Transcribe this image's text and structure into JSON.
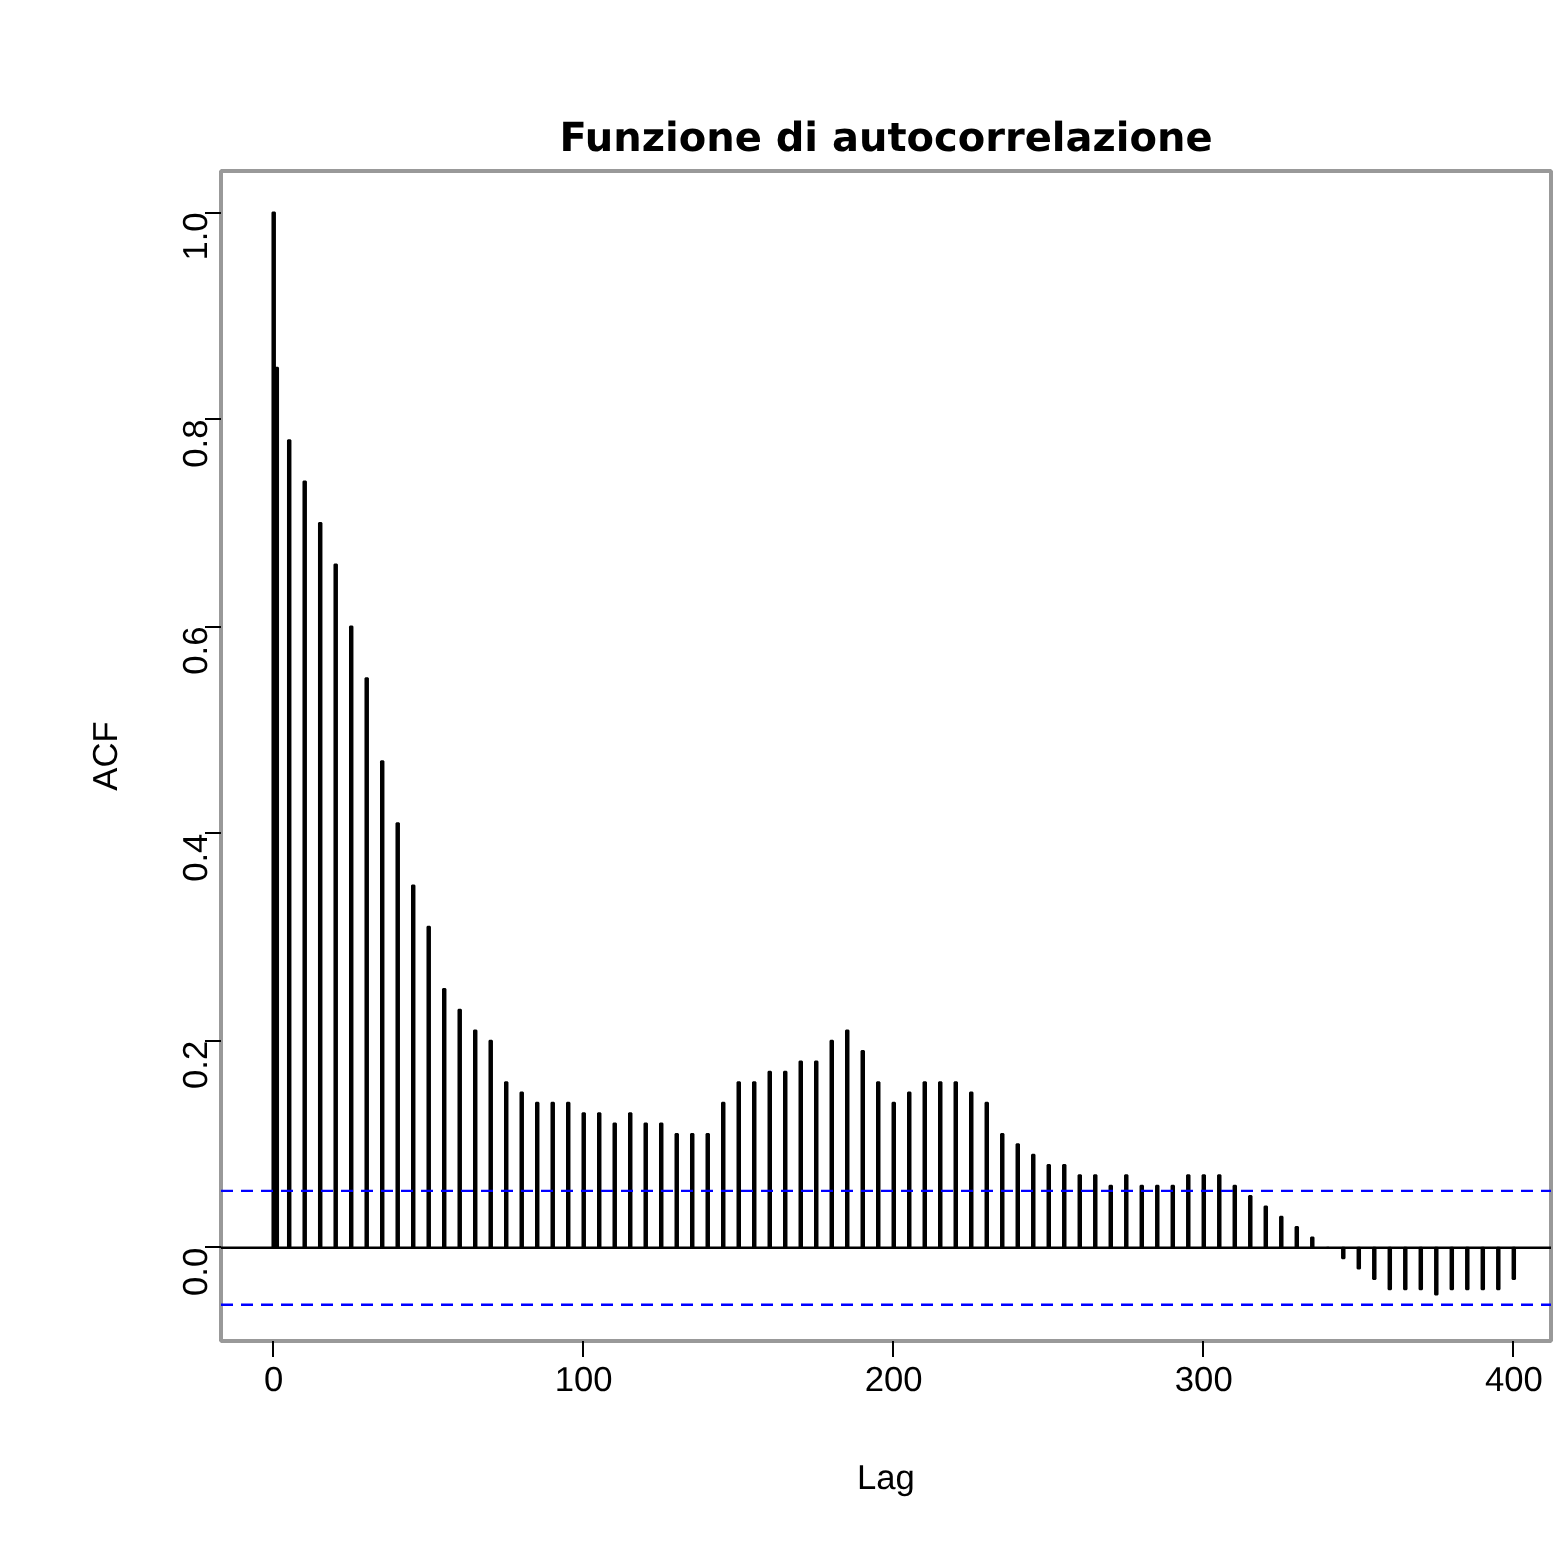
{
  "chart_data": {
    "type": "bar",
    "title": "Funzione di autocorrelazione",
    "xlabel": "Lag",
    "ylabel": "ACF",
    "x": [
      0,
      1,
      5,
      10,
      15,
      20,
      25,
      30,
      35,
      40,
      45,
      50,
      55,
      60,
      65,
      70,
      75,
      80,
      85,
      90,
      95,
      100,
      105,
      110,
      115,
      120,
      125,
      130,
      135,
      140,
      145,
      150,
      155,
      160,
      165,
      170,
      175,
      180,
      185,
      190,
      195,
      200,
      205,
      210,
      215,
      220,
      225,
      230,
      235,
      240,
      245,
      250,
      255,
      260,
      265,
      270,
      275,
      280,
      285,
      290,
      295,
      300,
      305,
      310,
      315,
      320,
      325,
      330,
      335,
      340,
      345,
      350,
      355,
      360,
      365,
      370,
      375,
      380,
      385,
      390,
      395,
      400
    ],
    "values": [
      1.0,
      0.85,
      0.78,
      0.74,
      0.7,
      0.66,
      0.6,
      0.55,
      0.47,
      0.41,
      0.35,
      0.31,
      0.25,
      0.23,
      0.21,
      0.2,
      0.16,
      0.15,
      0.14,
      0.14,
      0.14,
      0.13,
      0.13,
      0.12,
      0.13,
      0.12,
      0.12,
      0.11,
      0.11,
      0.11,
      0.14,
      0.16,
      0.16,
      0.17,
      0.17,
      0.18,
      0.18,
      0.2,
      0.21,
      0.19,
      0.16,
      0.14,
      0.15,
      0.16,
      0.16,
      0.16,
      0.15,
      0.14,
      0.11,
      0.1,
      0.09,
      0.08,
      0.08,
      0.07,
      0.07,
      0.06,
      0.07,
      0.06,
      0.06,
      0.06,
      0.07,
      0.07,
      0.07,
      0.06,
      0.05,
      0.04,
      0.03,
      0.02,
      0.01,
      0.0,
      -0.01,
      -0.02,
      -0.03,
      -0.04,
      -0.04,
      -0.04,
      -0.045,
      -0.04,
      -0.04,
      -0.04,
      -0.04,
      -0.03
    ],
    "color": "#000000",
    "xlim": [
      -17,
      412
    ],
    "ylim": [
      -0.09,
      1.04
    ],
    "xticks": [
      0,
      100,
      200,
      300,
      400
    ],
    "yticks": [
      {
        "value": 0,
        "label": "0.0"
      },
      {
        "value": 0.2,
        "label": "0.2"
      },
      {
        "value": 0.4,
        "label": "0.4"
      },
      {
        "value": 0.6,
        "label": "0.6"
      },
      {
        "value": 0.8,
        "label": "0.8"
      },
      {
        "value": 1.0,
        "label": "1.0"
      }
    ],
    "ref_lines": [
      {
        "axis": "y",
        "value": 0,
        "color": "#000000",
        "line_style": "solid"
      },
      {
        "axis": "y",
        "value": 0.055,
        "color": "#0000ff",
        "line_style": "dashed"
      },
      {
        "axis": "y",
        "value": -0.055,
        "color": "#0000ff",
        "line_style": "dashed"
      }
    ],
    "grid": false
  }
}
